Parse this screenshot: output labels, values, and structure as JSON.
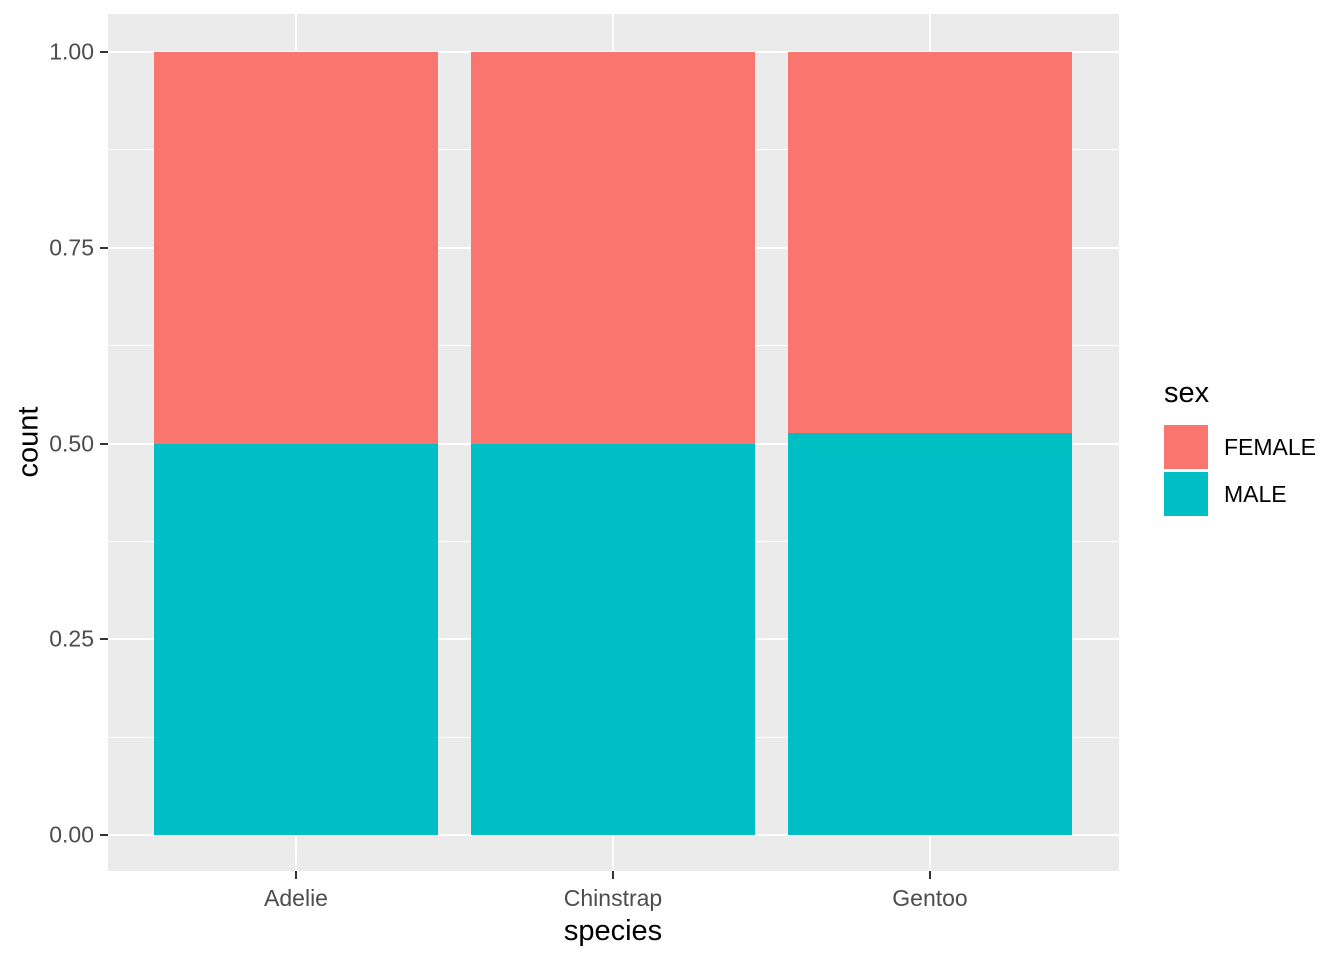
{
  "chart_data": {
    "type": "bar",
    "subtype": "stacked-proportion-bar",
    "title": "",
    "xlabel": "species",
    "ylabel": "count",
    "categories": [
      "Adelie",
      "Chinstrap",
      "Gentoo"
    ],
    "series": [
      {
        "name": "MALE",
        "color": "#00BFC4",
        "values": [
          0.5,
          0.5,
          0.513
        ]
      },
      {
        "name": "FEMALE",
        "color": "#F8766D",
        "values": [
          0.5,
          0.5,
          0.487
        ]
      }
    ],
    "stack_order_bottom_to_top": [
      "MALE",
      "FEMALE"
    ],
    "ylim": [
      0,
      1
    ],
    "y_tick_labels": [
      "0.00",
      "0.25",
      "0.50",
      "0.75",
      "1.00"
    ],
    "y_tick_values": [
      0,
      0.25,
      0.5,
      0.75,
      1
    ],
    "y_minor_tick_values": [
      0.125,
      0.375,
      0.625,
      0.875
    ],
    "grid": "white major and minor horizontal lines, white vertical lines at category centers, on gray panel",
    "legend": {
      "title": "sex",
      "position": "right",
      "entries": [
        {
          "label": "FEMALE",
          "color": "#F8766D"
        },
        {
          "label": "MALE",
          "color": "#00BFC4"
        }
      ]
    }
  },
  "style": {
    "panel_background": "#EBEBEB",
    "grid_color": "#FFFFFF",
    "tick_mark_color": "#333333",
    "tick_label_color": "#4D4D4D",
    "axis_title_color": "#000000",
    "figure_background": "#FFFFFF"
  }
}
